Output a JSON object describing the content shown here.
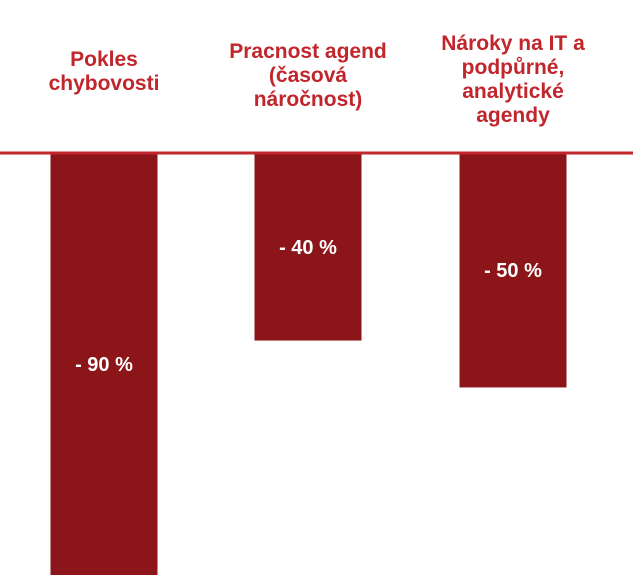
{
  "chart_data": {
    "type": "bar",
    "orientation": "vertical-downward",
    "categories": [
      [
        "Pokles",
        "chybovosti"
      ],
      [
        "Pracnost agend",
        "(časová",
        "náročnost)"
      ],
      [
        "Nároky na IT a",
        "podpůrné,",
        "analytické",
        "agendy"
      ]
    ],
    "values": [
      -90,
      -40,
      -50
    ],
    "data_labels": [
      "- 90 %",
      "- 40 %",
      "- 50 %"
    ],
    "ylim": [
      -90,
      0
    ],
    "grid": false,
    "legend": "none",
    "colors": {
      "bar": "#8b1518",
      "baseline": "#c0262b",
      "label": "#c0262b",
      "data_label": "#ffffff"
    }
  }
}
